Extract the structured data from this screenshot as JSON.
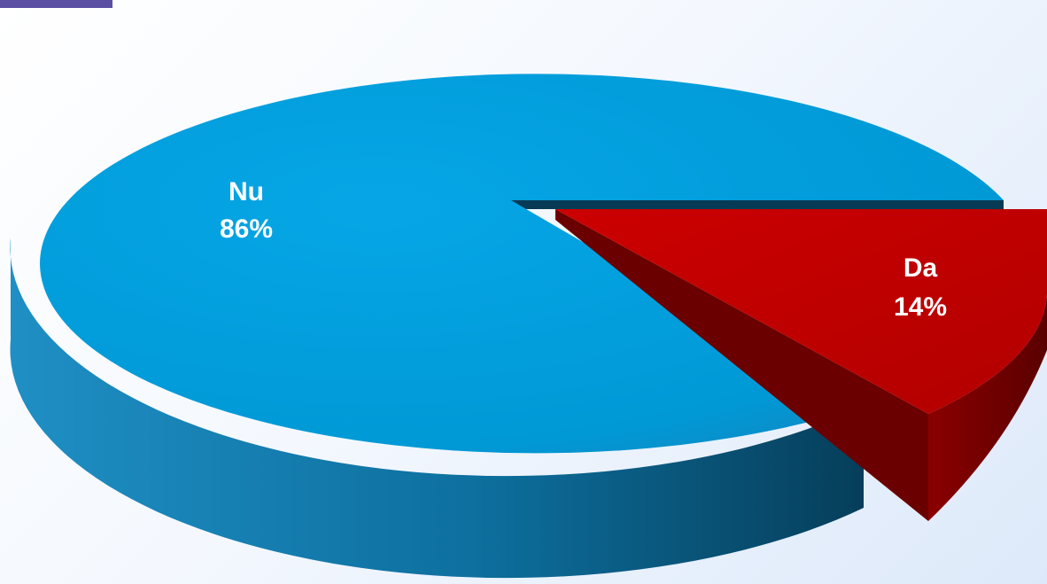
{
  "chart_data": {
    "type": "pie",
    "style": "3d",
    "slices": [
      {
        "label": "Nu",
        "value": 86,
        "value_label": "86%",
        "color": "#009ad8"
      },
      {
        "label": "Da",
        "value": 14,
        "value_label": "14%",
        "color": "#c00000",
        "exploded": true
      }
    ]
  },
  "colors": {
    "background": "#eef4fd",
    "accent_tab": "#5b4fa3"
  }
}
